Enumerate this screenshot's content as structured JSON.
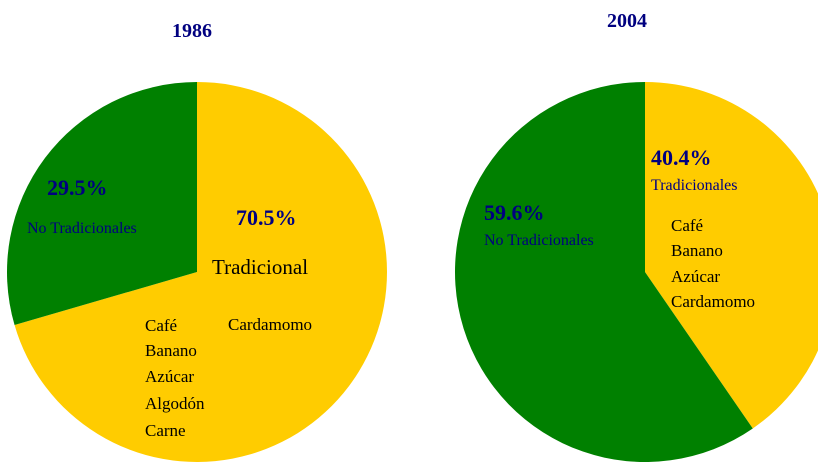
{
  "chart_data": [
    {
      "type": "pie",
      "title": "1986",
      "categories": [
        "Tradicional",
        "No Tradicionales"
      ],
      "values": [
        70.5,
        29.5
      ],
      "value_labels": [
        "70.5%",
        "29.5%"
      ],
      "colors": [
        "#ffcc00",
        "#008000"
      ],
      "annotations": [
        "Café",
        "Banano",
        "Azúcar",
        "Algodón",
        "Carne",
        "Cardamomo"
      ]
    },
    {
      "type": "pie",
      "title": "2004",
      "categories": [
        "Tradicionales",
        "No Tradicionales"
      ],
      "values": [
        40.4,
        59.6
      ],
      "value_labels": [
        "40.4%",
        "59.6%"
      ],
      "colors": [
        "#ffcc00",
        "#008000"
      ],
      "annotations": [
        "Café",
        "Banano",
        "Azúcar",
        "Cardamomo"
      ]
    }
  ]
}
